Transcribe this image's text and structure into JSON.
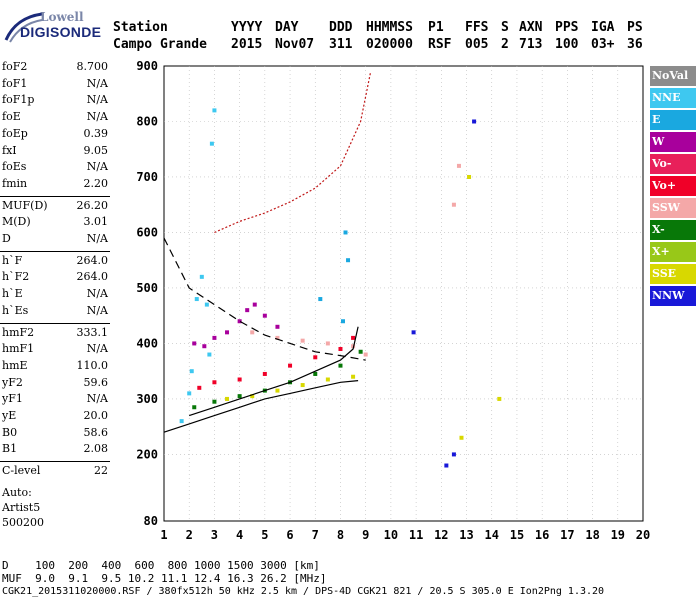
{
  "logo": {
    "line1": "Lowell",
    "line2": "DIGISONDE"
  },
  "header": {
    "labels": [
      "Station",
      "YYYY",
      "DAY",
      "DDD",
      "HHMMSS",
      "P1",
      "FFS",
      "S",
      "AXN",
      "PPS",
      "IGA",
      "PS"
    ],
    "values": [
      "Campo Grande",
      "2015",
      "Nov07",
      "311",
      "020000",
      "RSF",
      "005",
      "2",
      "713",
      "100",
      "03+",
      "36"
    ]
  },
  "params": [
    {
      "k": "foF2",
      "v": "8.700"
    },
    {
      "k": "foF1",
      "v": "N/A"
    },
    {
      "k": "foF1p",
      "v": "N/A"
    },
    {
      "k": "foE",
      "v": "N/A"
    },
    {
      "k": "foEp",
      "v": "0.39"
    },
    {
      "k": "fxI",
      "v": "9.05"
    },
    {
      "k": "foEs",
      "v": "N/A"
    },
    {
      "k": "fmin",
      "v": "2.20"
    },
    {
      "k": "MUF(D)",
      "v": "26.20"
    },
    {
      "k": "M(D)",
      "v": "3.01"
    },
    {
      "k": "D",
      "v": "N/A"
    },
    {
      "k": "h`F",
      "v": "264.0"
    },
    {
      "k": "h`F2",
      "v": "264.0"
    },
    {
      "k": "h`E",
      "v": "N/A"
    },
    {
      "k": "h`Es",
      "v": "N/A"
    },
    {
      "k": "hmF2",
      "v": "333.1"
    },
    {
      "k": "hmF1",
      "v": "N/A"
    },
    {
      "k": "hmE",
      "v": "110.0"
    },
    {
      "k": "yF2",
      "v": "59.6"
    },
    {
      "k": "yF1",
      "v": "N/A"
    },
    {
      "k": "yE",
      "v": "20.0"
    },
    {
      "k": "B0",
      "v": "58.6"
    },
    {
      "k": "B1",
      "v": "2.08"
    },
    {
      "k": "C-level",
      "v": "22"
    }
  ],
  "notes": [
    "Auto:",
    "Artist5",
    "500200"
  ],
  "legend": [
    {
      "label": "NoVal",
      "color": "#8c8c8c"
    },
    {
      "label": "NNE",
      "color": "#3ec8f0"
    },
    {
      "label": "E",
      "color": "#1aa8e0"
    },
    {
      "label": "W",
      "color": "#a8009c"
    },
    {
      "label": "Vo-",
      "color": "#e8205a"
    },
    {
      "label": "Vo+",
      "color": "#f00028"
    },
    {
      "label": "SSW",
      "color": "#f4a8a8"
    },
    {
      "label": "X-",
      "color": "#087808"
    },
    {
      "label": "X+",
      "color": "#98c818"
    },
    {
      "label": "SSE",
      "color": "#d8d800"
    },
    {
      "label": "NNW",
      "color": "#1818d8"
    }
  ],
  "footer": {
    "d_row": "D    100  200  400  600  800 1000 1500 3000 [km]",
    "muf_row": "MUF  9.0  9.1  9.5 10.2 11.1 12.4 16.3 26.2 [MHz]",
    "file_row": "CGK21_2015311020000.RSF / 380fx512h 50 kHz 2.5 km / DPS-4D CGK21 821 / 20.5 S 305.0 E Ion2Png 1.3.20"
  },
  "chart_data": {
    "type": "scatter",
    "xlim": [
      1,
      20
    ],
    "ylim": [
      80,
      900
    ],
    "xticks": [
      1,
      2,
      3,
      4,
      5,
      6,
      7,
      8,
      9,
      10,
      11,
      12,
      13,
      14,
      15,
      16,
      17,
      18,
      19,
      20
    ],
    "yticks": [
      80,
      200,
      300,
      400,
      500,
      600,
      700,
      800,
      900
    ],
    "grid": true,
    "legend_position": "right",
    "series": [
      {
        "name": "NNE",
        "color": "#3ec8f0",
        "points": [
          [
            2.0,
            310
          ],
          [
            2.1,
            350
          ],
          [
            2.3,
            480
          ],
          [
            2.5,
            520
          ],
          [
            2.7,
            470
          ],
          [
            2.8,
            380
          ],
          [
            1.7,
            260
          ],
          [
            2.9,
            760
          ],
          [
            3.0,
            820
          ]
        ]
      },
      {
        "name": "W",
        "color": "#a8009c",
        "points": [
          [
            2.2,
            400
          ],
          [
            2.6,
            395
          ],
          [
            3.0,
            410
          ],
          [
            3.5,
            420
          ],
          [
            4.0,
            440
          ],
          [
            4.3,
            460
          ],
          [
            4.6,
            470
          ],
          [
            5.0,
            450
          ],
          [
            5.5,
            430
          ]
        ]
      },
      {
        "name": "Vo+",
        "color": "#f00028",
        "points": [
          [
            2.4,
            320
          ],
          [
            3.0,
            330
          ],
          [
            4.0,
            335
          ],
          [
            5.0,
            345
          ],
          [
            6.0,
            360
          ],
          [
            7.0,
            375
          ],
          [
            8.0,
            390
          ],
          [
            8.5,
            410
          ]
        ]
      },
      {
        "name": "SSW",
        "color": "#f4a8a8",
        "points": [
          [
            4.5,
            420
          ],
          [
            5.5,
            410
          ],
          [
            6.5,
            405
          ],
          [
            7.5,
            400
          ],
          [
            8.5,
            395
          ],
          [
            9.0,
            380
          ],
          [
            12.5,
            650
          ],
          [
            12.7,
            720
          ]
        ]
      },
      {
        "name": "X-",
        "color": "#087808",
        "points": [
          [
            2.2,
            285
          ],
          [
            3.0,
            295
          ],
          [
            4.0,
            305
          ],
          [
            5.0,
            315
          ],
          [
            6.0,
            330
          ],
          [
            7.0,
            345
          ],
          [
            8.0,
            360
          ],
          [
            8.8,
            385
          ]
        ]
      },
      {
        "name": "SSE",
        "color": "#d8d800",
        "points": [
          [
            3.5,
            300
          ],
          [
            4.5,
            305
          ],
          [
            5.5,
            315
          ],
          [
            6.5,
            325
          ],
          [
            7.5,
            335
          ],
          [
            8.5,
            340
          ],
          [
            12.8,
            230
          ],
          [
            13.1,
            700
          ],
          [
            14.3,
            300
          ]
        ]
      },
      {
        "name": "E",
        "color": "#1aa8e0",
        "points": [
          [
            7.2,
            480
          ],
          [
            8.1,
            440
          ],
          [
            8.3,
            550
          ],
          [
            8.2,
            600
          ]
        ]
      },
      {
        "name": "NNW",
        "color": "#1818d8",
        "points": [
          [
            10.9,
            420
          ],
          [
            12.2,
            180
          ],
          [
            12.5,
            200
          ],
          [
            13.3,
            800
          ]
        ]
      }
    ],
    "traces": [
      {
        "name": "profile",
        "points": [
          [
            1.0,
            240
          ],
          [
            2.0,
            255
          ],
          [
            3.0,
            270
          ],
          [
            4.0,
            285
          ],
          [
            5.0,
            300
          ],
          [
            6.0,
            310
          ],
          [
            7.0,
            320
          ],
          [
            8.0,
            330
          ],
          [
            8.7,
            333
          ]
        ]
      },
      {
        "name": "virtual-height",
        "points": [
          [
            2.0,
            270
          ],
          [
            3.0,
            285
          ],
          [
            4.0,
            300
          ],
          [
            5.0,
            315
          ],
          [
            6.0,
            330
          ],
          [
            7.0,
            350
          ],
          [
            8.0,
            370
          ],
          [
            8.5,
            390
          ],
          [
            8.7,
            430
          ]
        ]
      },
      {
        "name": "muf",
        "points": [
          [
            1.0,
            590
          ],
          [
            2.0,
            500
          ],
          [
            3.0,
            470
          ],
          [
            4.0,
            440
          ],
          [
            5.0,
            415
          ],
          [
            6.0,
            400
          ],
          [
            7.0,
            385
          ],
          [
            8.0,
            378
          ],
          [
            9.0,
            370
          ]
        ]
      },
      {
        "name": "oblique",
        "points": [
          [
            3.0,
            600
          ],
          [
            4.0,
            620
          ],
          [
            5.0,
            635
          ],
          [
            6.0,
            655
          ],
          [
            7.0,
            680
          ],
          [
            8.0,
            720
          ],
          [
            8.8,
            800
          ],
          [
            9.2,
            890
          ]
        ]
      }
    ]
  }
}
